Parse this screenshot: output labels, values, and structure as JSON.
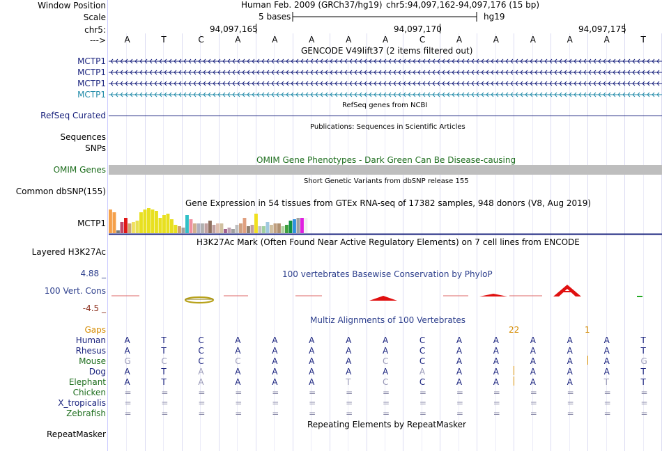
{
  "header": {
    "labels": [
      "Window Position",
      "Scale",
      "chr5:",
      "--->"
    ],
    "assembly": "Human Feb. 2009 (GRCh37/hg19)",
    "position": "chr5:94,097,162-94,097,176 (15 bp)",
    "scale_text": "5 bases",
    "db": "hg19",
    "ticks": [
      "94,097,165",
      "94,097,170",
      "94,097,175"
    ]
  },
  "bases": [
    "A",
    "T",
    "C",
    "A",
    "A",
    "A",
    "A",
    "A",
    "C",
    "A",
    "A",
    "A",
    "A",
    "A",
    "T"
  ],
  "gencode": {
    "title": "GENCODE V49lift37 (2 items filtered out)",
    "genes": [
      "MCTP1",
      "MCTP1",
      "MCTP1",
      "MCTP1"
    ],
    "colors": [
      "#1a237e",
      "#1a237e",
      "#1a237e",
      "#1f8aa8"
    ]
  },
  "refseq": {
    "title": "RefSeq genes from NCBI",
    "label": "RefSeq Curated"
  },
  "publications": {
    "title": "Publications: Sequences in Scientific Articles",
    "labels": [
      "Sequences",
      "SNPs"
    ]
  },
  "omim": {
    "title": "OMIM Gene Phenotypes - Dark Green Can Be Disease-causing",
    "label": "OMIM Genes"
  },
  "dbsnp": {
    "title": "Short Genetic Variants from dbSNP release 155",
    "label": "Common dbSNP(155)"
  },
  "gtex": {
    "title": "Gene Expression in 54 tissues from GTEx RNA-seq of 17382 samples, 948 donors (V8, Aug 2019)",
    "label": "MCTP1",
    "values": [
      34,
      30,
      4,
      16,
      22,
      14,
      16,
      18,
      30,
      34,
      36,
      34,
      32,
      22,
      26,
      28,
      20,
      12,
      10,
      8,
      26,
      20,
      14,
      14,
      14,
      14,
      18,
      12,
      14,
      14,
      6,
      8,
      6,
      12,
      14,
      22,
      10,
      12,
      28,
      10,
      10,
      16,
      12,
      14,
      14,
      10,
      12,
      18,
      20,
      22,
      22,
      22
    ],
    "colors": [
      "#f5a04a",
      "#f5a04a",
      "#7a7a7a",
      "#c04a6a",
      "#e01818",
      "#c8a878",
      "#f0e060",
      "#e8e050",
      "#e8e020",
      "#e8e020",
      "#e8e020",
      "#e8e020",
      "#e8e020",
      "#e8e020",
      "#e8e020",
      "#e8e020",
      "#e8e020",
      "#e8e020",
      "#d0a070",
      "#a0a0a0",
      "#30c0c8",
      "#f090a0",
      "#d0b090",
      "#b0b0c0",
      "#b0b0b0",
      "#c0a0a0",
      "#907060",
      "#c0a0a0",
      "#e0c0b0",
      "#d0c0a0",
      "#a06090",
      "#c0a0b0",
      "#a0a0a0",
      "#c0c0c0",
      "#d0a080",
      "#e0a080",
      "#908070",
      "#c0a0a0",
      "#f0e020",
      "#c0c0c0",
      "#a0d0a0",
      "#a0c8e0",
      "#d0c0a0",
      "#c0a080",
      "#b09070",
      "#b0d0a0",
      "#40a040",
      "#109040",
      "#3090e0",
      "#a0a0a0",
      "#e020e0",
      "#f0f0f0"
    ]
  },
  "h3k27ac": {
    "title": "H3K27Ac Mark (Often Found Near Active Regulatory Elements) on 7 cell lines from ENCODE",
    "label": "Layered H3K27Ac"
  },
  "phylop": {
    "title": "100 vertebrates Basewise Conservation by PhyloP",
    "label": "100 Vert. Cons",
    "max": "4.88 _",
    "min": "-4.5 _"
  },
  "multiz": {
    "title": "Multiz Alignments of 100 Vertebrates",
    "gaps_label": "Gaps",
    "gap_markers": [
      "22",
      "1"
    ],
    "species": [
      {
        "name": "Human",
        "bases": [
          "A",
          "T",
          "C",
          "A",
          "A",
          "A",
          "A",
          "A",
          "C",
          "A",
          "A",
          "A",
          "A",
          "A",
          "T"
        ]
      },
      {
        "name": "Rhesus",
        "bases": [
          "A",
          "T",
          "C",
          "A",
          "A",
          "A",
          "A",
          "A",
          "C",
          "A",
          "A",
          "A",
          "A",
          "A",
          "T"
        ]
      },
      {
        "name": "Mouse",
        "bases": [
          "G",
          "C",
          "C",
          "C",
          "A",
          "A",
          "A",
          "C",
          "C",
          "A",
          "A",
          "A",
          "A",
          "A",
          "G"
        ]
      },
      {
        "name": "Dog",
        "bases": [
          "A",
          "T",
          "A",
          "A",
          "A",
          "A",
          "A",
          "A",
          "A",
          "A",
          "A",
          "A",
          "A",
          "A",
          "T"
        ]
      },
      {
        "name": "Elephant",
        "bases": [
          "A",
          "T",
          "A",
          "A",
          "A",
          "A",
          "T",
          "C",
          "C",
          "A",
          "A",
          "A",
          "A",
          "T",
          "T"
        ]
      },
      {
        "name": "Chicken",
        "bases": [
          "=",
          "=",
          "=",
          "=",
          "=",
          "=",
          "=",
          "=",
          "=",
          "=",
          "=",
          "=",
          "=",
          "=",
          "="
        ]
      },
      {
        "name": "X_tropicalis",
        "bases": [
          "=",
          "=",
          "=",
          "=",
          "=",
          "=",
          "=",
          "=",
          "=",
          "=",
          "=",
          "=",
          "=",
          "=",
          "="
        ]
      },
      {
        "name": "Zebrafish",
        "bases": [
          "=",
          "=",
          "=",
          "=",
          "=",
          "=",
          "=",
          "=",
          "=",
          "=",
          "=",
          "=",
          "=",
          "=",
          "="
        ]
      }
    ]
  },
  "repeatmasker": {
    "title": "Repeating Elements by RepeatMasker",
    "label": "RepeatMasker"
  }
}
